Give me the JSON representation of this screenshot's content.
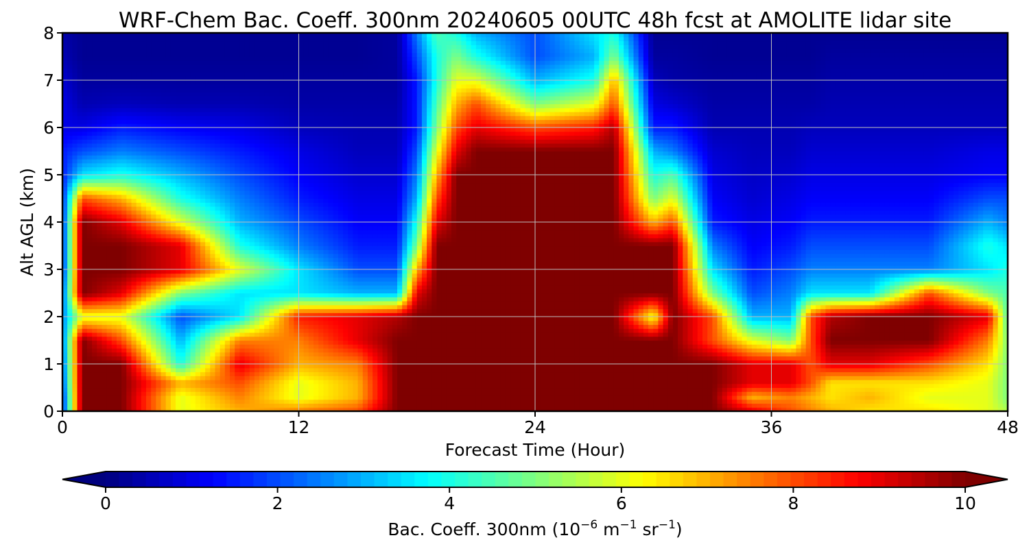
{
  "chart_data": {
    "type": "heatmap",
    "subtype": "filled-contour",
    "title": "WRF-Chem Bac. Coeff. 300nm  20240605 00UTC 48h fcst at AMOLITE lidar site",
    "xlabel": "Forecast Time (Hour)",
    "ylabel": "Alt AGL (km)",
    "xlim": [
      0,
      48
    ],
    "ylim": [
      0,
      8
    ],
    "xticks": [
      "0",
      "12",
      "24",
      "36",
      "48"
    ],
    "yticks": [
      "0",
      "1",
      "2",
      "3",
      "4",
      "5",
      "6",
      "7",
      "8"
    ],
    "grid": true,
    "colormap": "jet",
    "colorbar": {
      "label_prefix": "Bac. Coeff. 300nm  (10",
      "label_exp1": "−6",
      "label_mid": " m",
      "label_exp2": "−1",
      "label_mid2": " sr",
      "label_exp3": "−1",
      "label_suffix": ")",
      "min": 0,
      "max": 10,
      "ticks": [
        "0",
        "2",
        "4",
        "6",
        "8",
        "10"
      ],
      "extend": "both",
      "placement": "bottom"
    },
    "profile_times_hours": [
      0,
      1,
      3,
      6,
      9,
      12,
      15,
      17,
      18,
      19,
      20,
      21,
      24,
      27,
      28,
      30,
      31,
      33,
      35,
      37,
      38,
      39,
      41,
      44,
      47,
      48
    ],
    "altitudes_km": [
      0,
      0.3,
      0.6,
      1,
      1.5,
      2,
      2.5,
      3,
      3.5,
      4,
      4.5,
      5,
      5.5,
      6,
      6.5,
      7,
      7.5,
      8
    ],
    "values": [
      [
        1.5,
        1.5,
        1.8,
        2.0,
        2.2,
        2.5,
        2.0,
        1.5,
        1.5,
        1.5,
        1.5,
        1.5,
        1.5,
        1.0,
        1.0,
        0.8,
        0.5,
        0.4
      ],
      [
        10,
        10,
        10,
        10,
        10,
        6,
        10,
        10,
        10,
        10,
        8,
        3.5,
        2.0,
        1.0,
        0.5,
        0.3,
        0.2,
        0.2
      ],
      [
        10,
        10,
        10,
        10,
        8,
        6,
        9,
        10,
        10,
        9,
        7,
        4,
        2.5,
        1.5,
        0.6,
        0.3,
        0.2,
        0.2
      ],
      [
        6,
        6,
        7,
        4,
        3,
        2,
        5,
        9,
        9,
        6,
        4,
        3,
        2,
        1.2,
        0.5,
        0.3,
        0.2,
        0.2
      ],
      [
        7,
        7.5,
        8,
        9,
        7.5,
        3.5,
        3.5,
        6,
        4,
        3,
        2.5,
        2.0,
        1.5,
        1.0,
        0.5,
        0.3,
        0.2,
        0.2
      ],
      [
        7.5,
        6,
        6,
        7,
        7.5,
        8.5,
        3.5,
        3.5,
        2.5,
        2.0,
        1.5,
        1.2,
        1.0,
        0.6,
        0.4,
        0.3,
        0.2,
        0.2
      ],
      [
        8,
        7,
        7,
        7.5,
        9,
        9,
        3,
        2,
        1.5,
        1.2,
        1.0,
        0.8,
        0.6,
        0.5,
        0.4,
        0.3,
        0.2,
        0.2
      ],
      [
        10,
        10,
        10,
        10,
        10,
        9.5,
        3,
        2,
        1.5,
        1.2,
        1.0,
        0.8,
        0.6,
        0.5,
        0.4,
        0.3,
        0.3,
        0.3
      ],
      [
        10,
        10,
        10,
        10,
        10,
        10,
        9,
        7,
        5,
        4,
        3,
        2.5,
        2,
        1.5,
        1.5,
        1.5,
        2.0,
        2.5
      ],
      [
        10,
        10,
        10,
        10,
        10,
        10,
        10,
        10,
        10,
        9,
        8,
        7,
        6,
        5,
        4.5,
        4,
        4,
        4.5
      ],
      [
        10,
        10,
        10,
        10,
        10,
        10,
        10,
        10,
        10,
        10,
        10,
        10,
        9,
        8,
        7,
        6,
        5,
        4
      ],
      [
        10,
        10,
        10,
        10,
        10,
        10,
        10,
        10,
        10,
        10,
        10,
        10,
        10,
        9,
        8,
        6,
        4,
        3
      ],
      [
        10,
        10,
        10,
        10,
        10,
        10,
        10,
        10,
        10,
        10,
        10,
        10,
        10,
        8,
        5,
        3,
        2,
        2
      ],
      [
        10,
        10,
        10,
        10,
        10,
        10,
        10,
        10,
        10,
        10,
        10,
        10,
        10,
        8.5,
        6,
        4,
        3,
        3.5
      ],
      [
        10,
        10,
        10,
        10,
        10,
        10,
        10,
        10,
        10,
        10,
        10,
        10,
        10,
        9.5,
        8,
        7,
        5,
        4
      ],
      [
        10,
        10,
        10,
        10,
        10,
        6,
        10,
        10,
        10,
        7,
        5,
        4,
        3,
        1.5,
        1.0,
        0.6,
        0.3,
        0.2
      ],
      [
        10,
        10,
        10,
        10,
        10,
        10,
        10,
        10,
        10,
        8,
        6,
        4.5,
        2.5,
        1.5,
        0.8,
        0.4,
        0.3,
        0.2
      ],
      [
        10,
        10,
        10,
        10,
        8,
        8,
        5,
        3.5,
        2.5,
        1.5,
        1.2,
        1.0,
        0.8,
        0.5,
        0.4,
        0.3,
        0.2,
        0.2
      ],
      [
        9,
        7,
        9,
        9,
        6,
        3,
        2,
        1.5,
        1.2,
        1.0,
        0.8,
        0.7,
        0.6,
        0.5,
        0.4,
        0.3,
        0.2,
        0.2
      ],
      [
        8,
        7.5,
        9,
        9,
        5,
        3,
        2.5,
        2.0,
        1.5,
        1.2,
        1.0,
        0.8,
        0.6,
        0.5,
        0.4,
        0.3,
        0.2,
        0.2
      ],
      [
        7.5,
        7,
        8,
        8,
        8,
        8,
        3.5,
        2.5,
        2.0,
        1.5,
        1.2,
        1.0,
        0.8,
        0.6,
        0.4,
        0.3,
        0.2,
        0.2
      ],
      [
        7,
        6.5,
        6.5,
        9,
        10,
        9.5,
        3.5,
        2.5,
        2.0,
        1.5,
        1.2,
        1.0,
        0.8,
        0.6,
        0.5,
        0.4,
        0.3,
        0.2
      ],
      [
        6.5,
        7,
        6.5,
        9,
        10,
        10,
        3.5,
        2.5,
        2.0,
        1.5,
        1.2,
        1.0,
        0.8,
        0.6,
        0.5,
        0.4,
        0.3,
        0.2
      ],
      [
        6.5,
        6,
        6.5,
        8,
        10,
        10,
        8,
        2.5,
        2.0,
        1.5,
        1.2,
        1.0,
        0.8,
        0.6,
        0.5,
        0.4,
        0.3,
        0.2
      ],
      [
        6,
        6,
        6,
        6.5,
        7.5,
        9,
        5,
        3.5,
        4,
        3,
        2,
        1.2,
        1.0,
        0.6,
        0.5,
        0.4,
        0.3,
        0.2
      ],
      [
        5.5,
        5,
        5,
        5,
        5,
        4.5,
        4.5,
        4,
        3.5,
        2.5,
        2,
        1.2,
        1.0,
        0.6,
        0.5,
        0.4,
        0.3,
        0.2
      ]
    ]
  },
  "colors": {
    "jet_stops": [
      "#00007f",
      "#0000ff",
      "#007fff",
      "#00ffff",
      "#7fff7f",
      "#ffff00",
      "#ff7f00",
      "#ff0000",
      "#7f0000"
    ],
    "grid": "#bfbfbf",
    "axis": "#000000"
  }
}
